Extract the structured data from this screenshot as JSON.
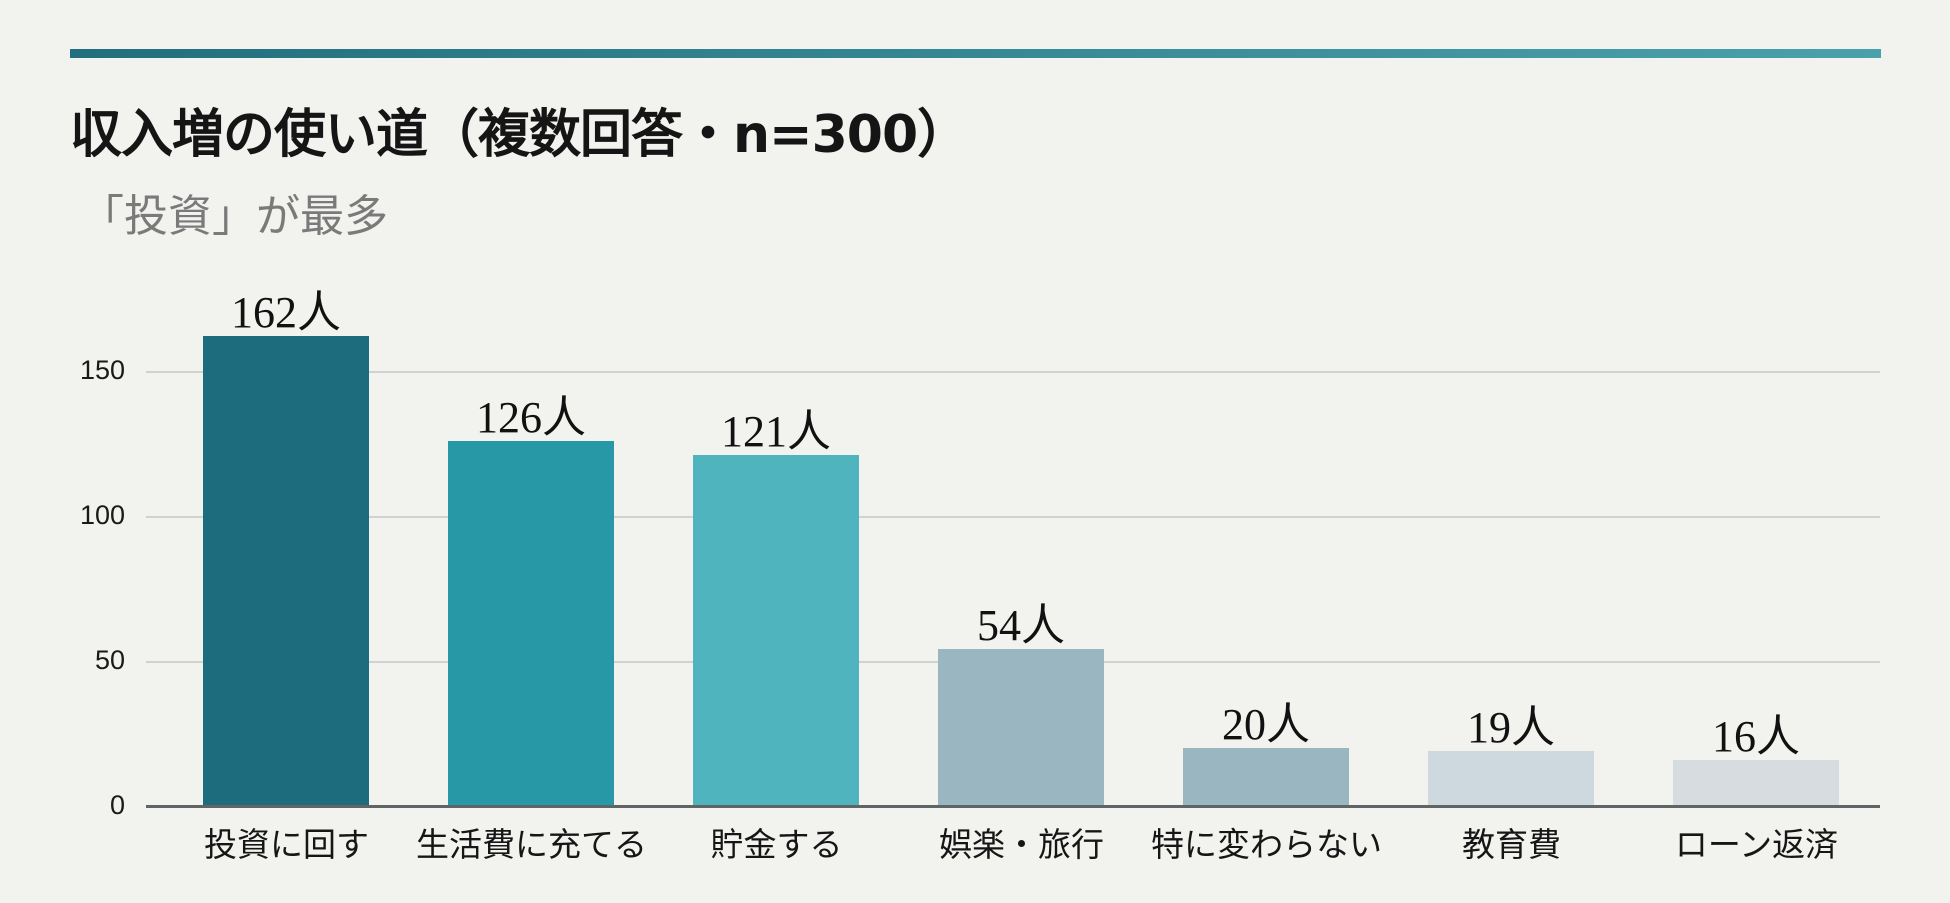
{
  "header": {
    "title": "収入増の使い道（複数回答・n=300）",
    "subtitle": "「投資」が最多",
    "accent_color": "#2c7c88"
  },
  "chart_data": {
    "type": "bar",
    "title": "収入増の使い道（複数回答・n=300）",
    "subtitle": "「投資」が最多",
    "xlabel": "",
    "ylabel": "",
    "ylim": [
      0,
      170
    ],
    "yticks": [
      0,
      50,
      100,
      150
    ],
    "grid": true,
    "legend": "none",
    "unit_suffix": "人",
    "categories": [
      "投資に回す",
      "生活費に充てる",
      "貯金する",
      "娯楽・旅行",
      "特に変わらない",
      "教育費",
      "ローン返済"
    ],
    "values": [
      162,
      126,
      121,
      54,
      20,
      19,
      16
    ],
    "value_labels": [
      "162人",
      "126人",
      "121人",
      "54人",
      "20人",
      "19人",
      "16人"
    ],
    "colors": [
      "#1c6c7d",
      "#2799a6",
      "#4fb4be",
      "#9ab7c1",
      "#9ab7c1",
      "#cdd9de",
      "#d7dce1"
    ]
  }
}
